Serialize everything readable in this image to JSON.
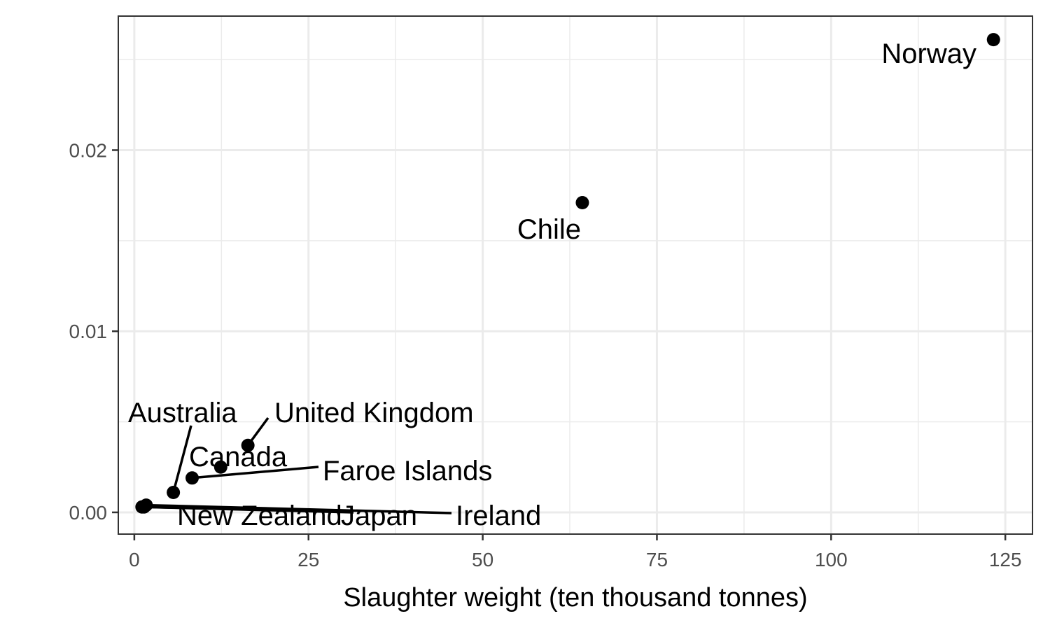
{
  "chart_data": {
    "type": "scatter",
    "title": "",
    "xlabel": "Slaughter weight (ten thousand tonnes)",
    "ylabel": "",
    "xlim": [
      -2.3,
      128.9
    ],
    "ylim": [
      -0.0012,
      0.0274
    ],
    "x_ticks": [
      0,
      25,
      50,
      75,
      100,
      125
    ],
    "x_tick_labels": [
      "0",
      "25",
      "50",
      "75",
      "100",
      "125"
    ],
    "y_ticks": [
      0.0,
      0.01,
      0.02
    ],
    "y_tick_labels": [
      "0.00",
      "0.01",
      "0.02"
    ],
    "grid": true,
    "theme": "bw",
    "point_color": "#000000",
    "points": [
      {
        "label": "Norway",
        "x": 123.3,
        "y": 0.0261
      },
      {
        "label": "Chile",
        "x": 64.3,
        "y": 0.0171
      },
      {
        "label": "United Kingdom",
        "x": 16.3,
        "y": 0.0037
      },
      {
        "label": "Canada",
        "x": 12.4,
        "y": 0.0025
      },
      {
        "label": "Faroe Islands",
        "x": 8.3,
        "y": 0.0019
      },
      {
        "label": "Australia",
        "x": 5.6,
        "y": 0.0011
      },
      {
        "label": "Ireland",
        "x": 1.7,
        "y": 0.0004
      },
      {
        "label": "Japan",
        "x": 1.4,
        "y": 0.0003
      },
      {
        "label": "New Zealand",
        "x": 1.1,
        "y": 0.0003
      }
    ]
  }
}
